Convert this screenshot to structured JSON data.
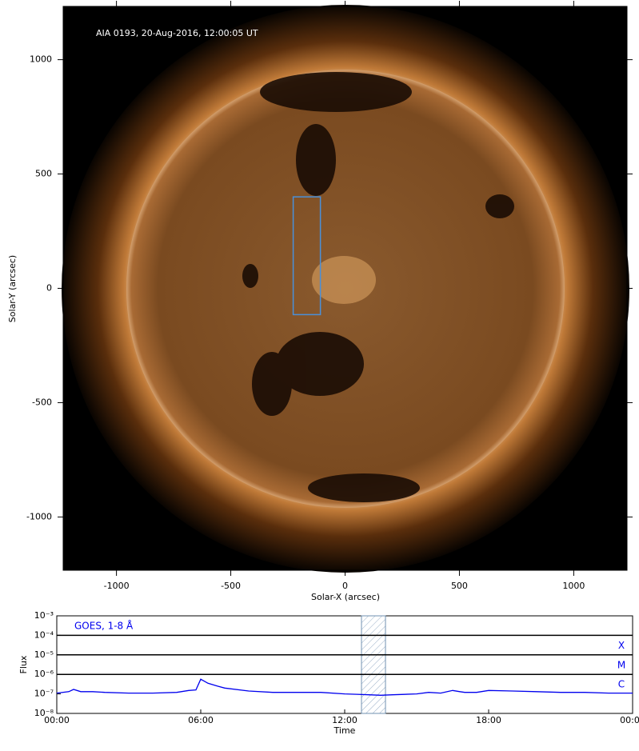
{
  "chart_data": [
    {
      "type": "image",
      "annotation": "AIA 0193, 20-Aug-2016, 12:00:05 UT",
      "xlabel": "Solar-X (arcsec)",
      "ylabel": "Solar-Y (arcsec)",
      "xlim": [
        -1233,
        1233
      ],
      "ylim": [
        -1233,
        1233
      ],
      "xticks": [
        -1000,
        -500,
        0,
        500,
        1000
      ],
      "yticks": [
        -1000,
        -500,
        0,
        500,
        1000
      ],
      "box": {
        "x": [
          -227,
          -108
        ],
        "y": [
          -115,
          400
        ],
        "color": "#4a90d9"
      }
    },
    {
      "type": "line",
      "xlabel": "Time",
      "ylabel": "Flux",
      "xlim": [
        0,
        24
      ],
      "xticks": [
        {
          "value": 0,
          "label": "00:00"
        },
        {
          "value": 6,
          "label": "06:00"
        },
        {
          "value": 12,
          "label": "12:00"
        },
        {
          "value": 18,
          "label": "18:00"
        },
        {
          "value": 24,
          "label": "00:00"
        }
      ],
      "ylim": [
        1e-08,
        0.001
      ],
      "log_y": true,
      "yticks": [
        {
          "value": 1e-08,
          "label": "10⁻⁸"
        },
        {
          "value": 1e-07,
          "label": "10⁻⁷"
        },
        {
          "value": 1e-06,
          "label": "10⁻⁶"
        },
        {
          "value": 1e-05,
          "label": "10⁻⁵"
        },
        {
          "value": 0.0001,
          "label": "10⁻⁴"
        },
        {
          "value": 0.001,
          "label": "10⁻³"
        }
      ],
      "levels": [
        {
          "value": 0.0001,
          "label": "X"
        },
        {
          "value": 1e-05,
          "label": "M"
        },
        {
          "value": 1e-06,
          "label": "C"
        }
      ],
      "highlight": [
        12.7,
        13.7
      ],
      "x": [
        0,
        0.5,
        0.7,
        1,
        1.5,
        2,
        3,
        4,
        5,
        5.5,
        5.8,
        6,
        6.3,
        6.7,
        7,
        8,
        9,
        10,
        11,
        12,
        12.5,
        13,
        13.5,
        14,
        15,
        15.5,
        16,
        16.5,
        16.8,
        17,
        17.5,
        18,
        19,
        20,
        21,
        22,
        23,
        24
      ],
      "series": [
        {
          "name": "GOES, 1-8 Å",
          "color": "#0000ee",
          "values": [
            1.1e-07,
            1.3e-07,
            1.7e-07,
            1.3e-07,
            1.3e-07,
            1.2e-07,
            1.1e-07,
            1.1e-07,
            1.2e-07,
            1.5e-07,
            1.6e-07,
            5.7e-07,
            3.5e-07,
            2.5e-07,
            2e-07,
            1.4e-07,
            1.2e-07,
            1.2e-07,
            1.2e-07,
            1e-07,
            9.5e-08,
            9e-08,
            8.5e-08,
            9e-08,
            1e-07,
            1.2e-07,
            1.1e-07,
            1.5e-07,
            1.3e-07,
            1.2e-07,
            1.2e-07,
            1.5e-07,
            1.4e-07,
            1.3e-07,
            1.2e-07,
            1.2e-07,
            1.1e-07,
            1.1e-07
          ]
        }
      ]
    }
  ]
}
